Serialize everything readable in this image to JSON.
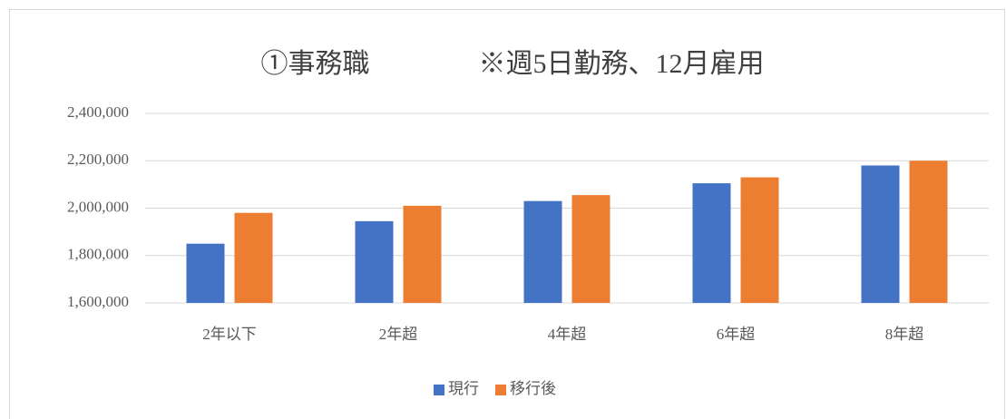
{
  "chart_data": {
    "type": "bar",
    "title": "①事務職　　　　※週5日勤務、12月雇用",
    "categories": [
      "2年以下",
      "2年超",
      "4年超",
      "6年超",
      "8年超"
    ],
    "series": [
      {
        "name": "現行",
        "color": "#4472c4",
        "values": [
          1850000,
          1945000,
          2030000,
          2105000,
          2180000
        ]
      },
      {
        "name": "移行後",
        "color": "#ed7d31",
        "values": [
          1980000,
          2010000,
          2055000,
          2130000,
          2200000
        ]
      }
    ],
    "ylim": [
      1600000,
      2400000
    ],
    "yticks": [
      {
        "value": 1600000,
        "label": "1,600,000"
      },
      {
        "value": 1800000,
        "label": "1,800,000"
      },
      {
        "value": 2000000,
        "label": "2,000,000"
      },
      {
        "value": 2200000,
        "label": "2,200,000"
      },
      {
        "value": 2400000,
        "label": "2,400,000"
      }
    ],
    "grid": true,
    "legend": "bottom"
  }
}
